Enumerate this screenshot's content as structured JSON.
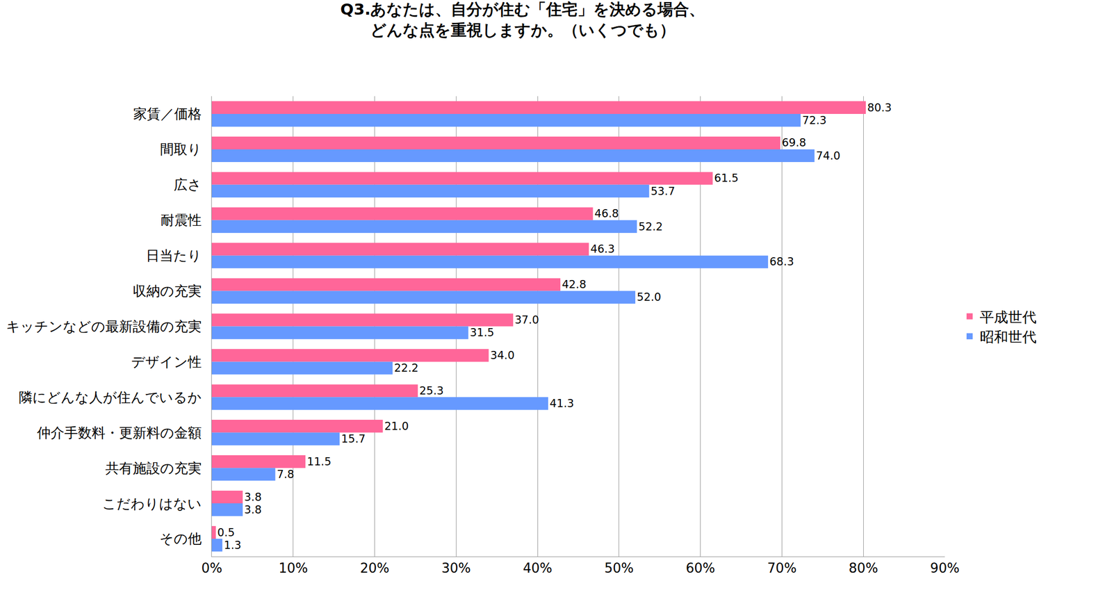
{
  "chart_data": {
    "type": "bar",
    "orientation": "horizontal",
    "title": "Q3.あなたは、自分が住む「住宅」を決める場合、\nどんな点を重視しますか。（いくつでも）",
    "categories": [
      "家賃／価格",
      "間取り",
      "広さ",
      "耐震性",
      "日当たり",
      "収納の充実",
      "キッチンなどの最新設備の充実",
      "デザイン性",
      "隣にどんな人が住んでいるか",
      "仲介手数料・更新料の金額",
      "共有施設の充実",
      "こだわりはない",
      "その他"
    ],
    "series": [
      {
        "name": "平成世代",
        "color": "#ff6699",
        "values": [
          80.3,
          69.8,
          61.5,
          46.8,
          46.3,
          42.8,
          37.0,
          34.0,
          25.3,
          21.0,
          11.5,
          3.8,
          0.5
        ],
        "value_labels": [
          "80.3",
          "69.8",
          "61.5",
          "46.8",
          "46.3",
          "42.8",
          "37.0",
          "34.0",
          "25.3",
          "21.0",
          "11.5",
          "3.8",
          "0.5"
        ]
      },
      {
        "name": "昭和世代",
        "color": "#6699ff",
        "values": [
          72.3,
          74.0,
          53.7,
          52.2,
          68.3,
          52.0,
          31.5,
          22.2,
          41.3,
          15.7,
          7.8,
          3.8,
          1.3
        ],
        "value_labels": [
          "72.3",
          "74.0",
          "53.7",
          "52.2",
          "68.3",
          "52.0",
          "31.5",
          "22.2",
          "41.3",
          "15.7",
          "7.8",
          "3.8",
          "1.3"
        ]
      }
    ],
    "xlim": [
      0,
      90
    ],
    "xticks": [
      {
        "value": 0,
        "label": "0%"
      },
      {
        "value": 10,
        "label": "10%"
      },
      {
        "value": 20,
        "label": "20%"
      },
      {
        "value": 30,
        "label": "30%"
      },
      {
        "value": 40,
        "label": "40%"
      },
      {
        "value": 50,
        "label": "50%"
      },
      {
        "value": 60,
        "label": "60%"
      },
      {
        "value": 70,
        "label": "70%"
      },
      {
        "value": 80,
        "label": "80%"
      },
      {
        "value": 90,
        "label": "90%"
      }
    ],
    "grid": true,
    "legend": "right",
    "data_labels": true
  }
}
